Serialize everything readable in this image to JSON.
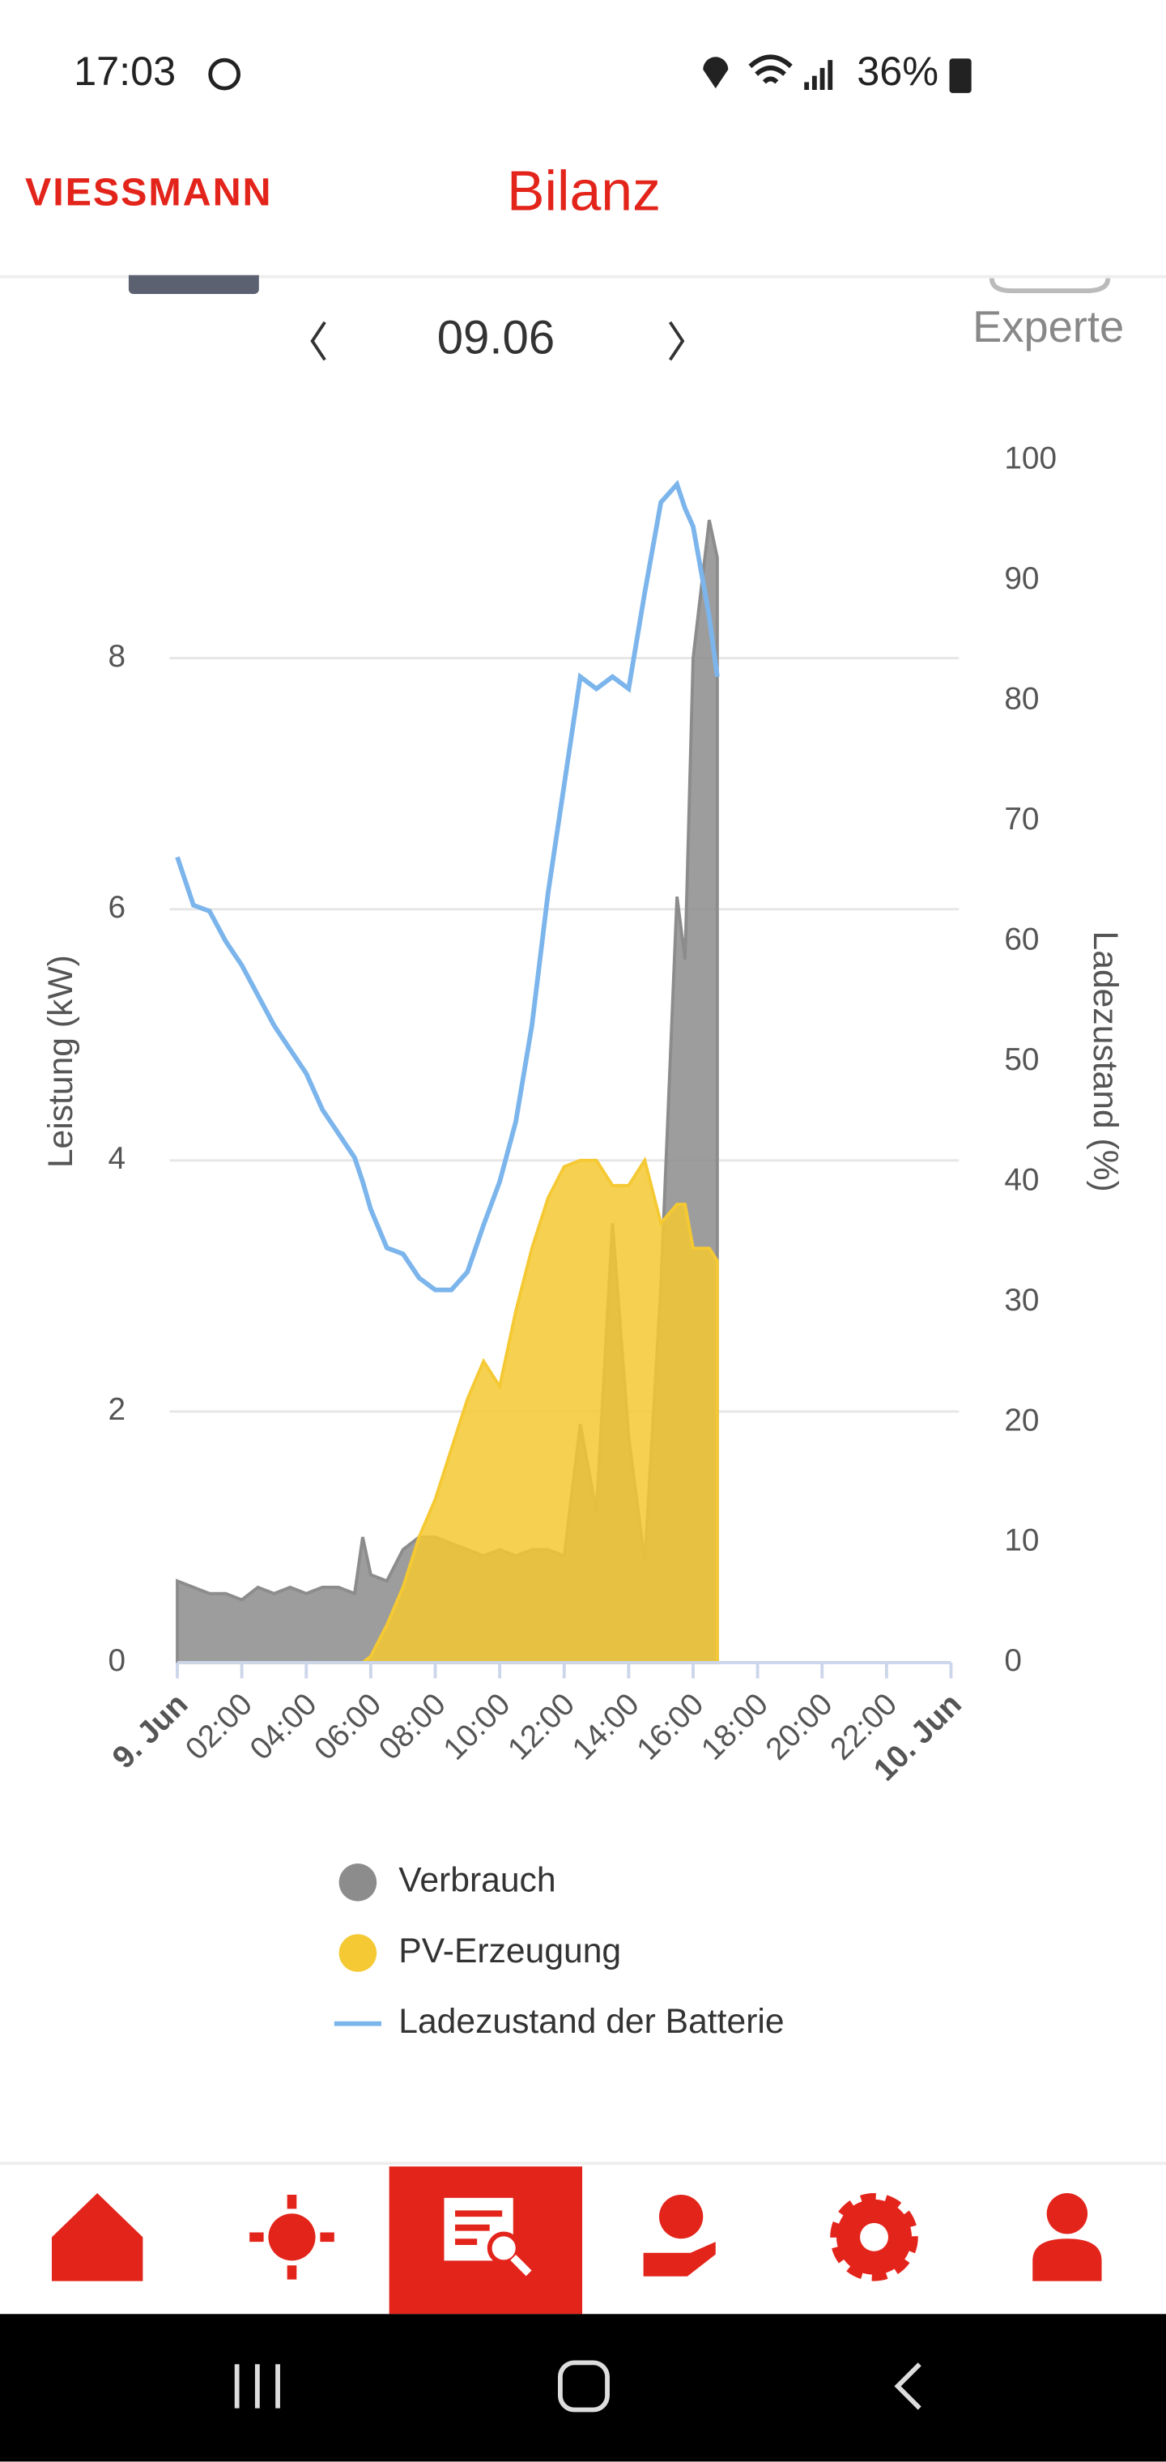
{
  "status_bar": {
    "time": "17:03",
    "battery": "36%"
  },
  "header": {
    "logo": "VIESSMANN",
    "title": "Bilanz"
  },
  "date_nav": {
    "date": "09.06"
  },
  "toggle": {
    "label": "Experte"
  },
  "chart_data": {
    "type": "area",
    "x_label": null,
    "y_label": "Leistung (kW)",
    "y2_label": "Ladezustand (%)",
    "x": [
      0,
      0.5,
      1,
      1.5,
      2,
      2.5,
      3,
      3.5,
      4,
      4.5,
      5,
      5.5,
      5.75,
      6,
      6.5,
      7,
      7.5,
      8,
      8.5,
      9,
      9.5,
      10,
      10.5,
      11,
      11.5,
      12,
      12.5,
      13,
      13.5,
      14,
      14.5,
      15,
      15.5,
      15.75,
      16,
      16.5,
      16.75
    ],
    "xlim": [
      0,
      24
    ],
    "xticks": [
      {
        "value": 0,
        "label": "9. Jun"
      },
      {
        "value": 2,
        "label": "02:00"
      },
      {
        "value": 4,
        "label": "04:00"
      },
      {
        "value": 6,
        "label": "06:00"
      },
      {
        "value": 8,
        "label": "08:00"
      },
      {
        "value": 10,
        "label": "10:00"
      },
      {
        "value": 12,
        "label": "12:00"
      },
      {
        "value": 14,
        "label": "14:00"
      },
      {
        "value": 16,
        "label": "16:00"
      },
      {
        "value": 18,
        "label": "18:00"
      },
      {
        "value": 20,
        "label": "20:00"
      },
      {
        "value": 22,
        "label": "22:00"
      },
      {
        "value": 24,
        "label": "10. Jun"
      }
    ],
    "ylim": [
      0,
      9.575
    ],
    "yticks": [
      0,
      2,
      4,
      6,
      8
    ],
    "y2lim": [
      0,
      100
    ],
    "y2ticks": [
      0,
      10,
      20,
      30,
      40,
      50,
      60,
      70,
      80,
      90,
      100
    ],
    "grid": true,
    "series": [
      {
        "name": "Verbrauch",
        "color": "#8c8c8c",
        "values": [
          0.65,
          0.6,
          0.55,
          0.55,
          0.5,
          0.6,
          0.55,
          0.6,
          0.55,
          0.6,
          0.6,
          0.55,
          1.0,
          0.7,
          0.65,
          0.9,
          1.0,
          1.0,
          0.95,
          0.9,
          0.85,
          0.9,
          0.85,
          0.9,
          0.9,
          0.85,
          1.9,
          1.2,
          3.5,
          1.8,
          0.8,
          3.0,
          6.1,
          5.6,
          8.0,
          9.1,
          8.8
        ]
      },
      {
        "name": "PV-Erzeugung",
        "color": "#f5c933",
        "values": [
          0,
          0,
          0,
          0,
          0,
          0,
          0,
          0,
          0,
          0,
          0,
          0,
          0,
          0.05,
          0.3,
          0.6,
          1.0,
          1.3,
          1.7,
          2.1,
          2.4,
          2.2,
          2.8,
          3.3,
          3.7,
          3.95,
          4.0,
          4.0,
          3.8,
          3.8,
          4.0,
          3.5,
          3.65,
          3.65,
          3.3,
          3.3,
          3.2
        ]
      },
      {
        "name": "Ladezustand der Batterie",
        "color": "#7cb5ec",
        "type": "line",
        "axis": "y2",
        "values": [
          67,
          63,
          62.5,
          60,
          58,
          55.5,
          53,
          51,
          49,
          46,
          44,
          42,
          40,
          37.7,
          34.5,
          34,
          32,
          31,
          31,
          32.5,
          36.4,
          40,
          45,
          53,
          64,
          73,
          82,
          81,
          82,
          81,
          89,
          96.5,
          98,
          96,
          94.5,
          87,
          82
        ]
      }
    ]
  }
}
